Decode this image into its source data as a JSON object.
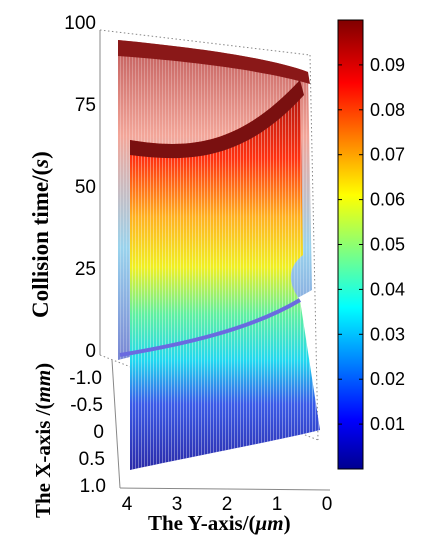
{
  "chart_data": {
    "type": "surface-3d",
    "title": "",
    "zlabel": {
      "main": "Collision time/(",
      "var": "s",
      "end": ")"
    },
    "xlabel": {
      "main": "The X-axis /(",
      "var": "mm",
      "end": ")"
    },
    "ylabel": {
      "main": "The Y-axis/(",
      "var": "μm",
      "end": ")"
    },
    "z_ticks": [
      "0",
      "25",
      "50",
      "75",
      "100"
    ],
    "x_ticks": [
      "-1.0",
      "-0.5",
      "0",
      "0.5",
      "1.0"
    ],
    "y_ticks": [
      "4",
      "3",
      "2",
      "1",
      "0"
    ],
    "zlim": [
      0,
      100
    ],
    "xlim": [
      -1.0,
      1.0
    ],
    "ylim": [
      0,
      4
    ],
    "colorbar": {
      "ticks": [
        "0.01",
        "0.02",
        "0.03",
        "0.04",
        "0.05",
        "0.06",
        "0.07",
        "0.08",
        "0.09"
      ],
      "range": [
        0,
        0.1
      ],
      "colormap": "jet"
    },
    "grid": false,
    "colors": {
      "jet": [
        "#00008f",
        "#0000ff",
        "#0080ff",
        "#00ffff",
        "#80ff80",
        "#ffff00",
        "#ff8000",
        "#ff0000",
        "#800000"
      ]
    }
  }
}
